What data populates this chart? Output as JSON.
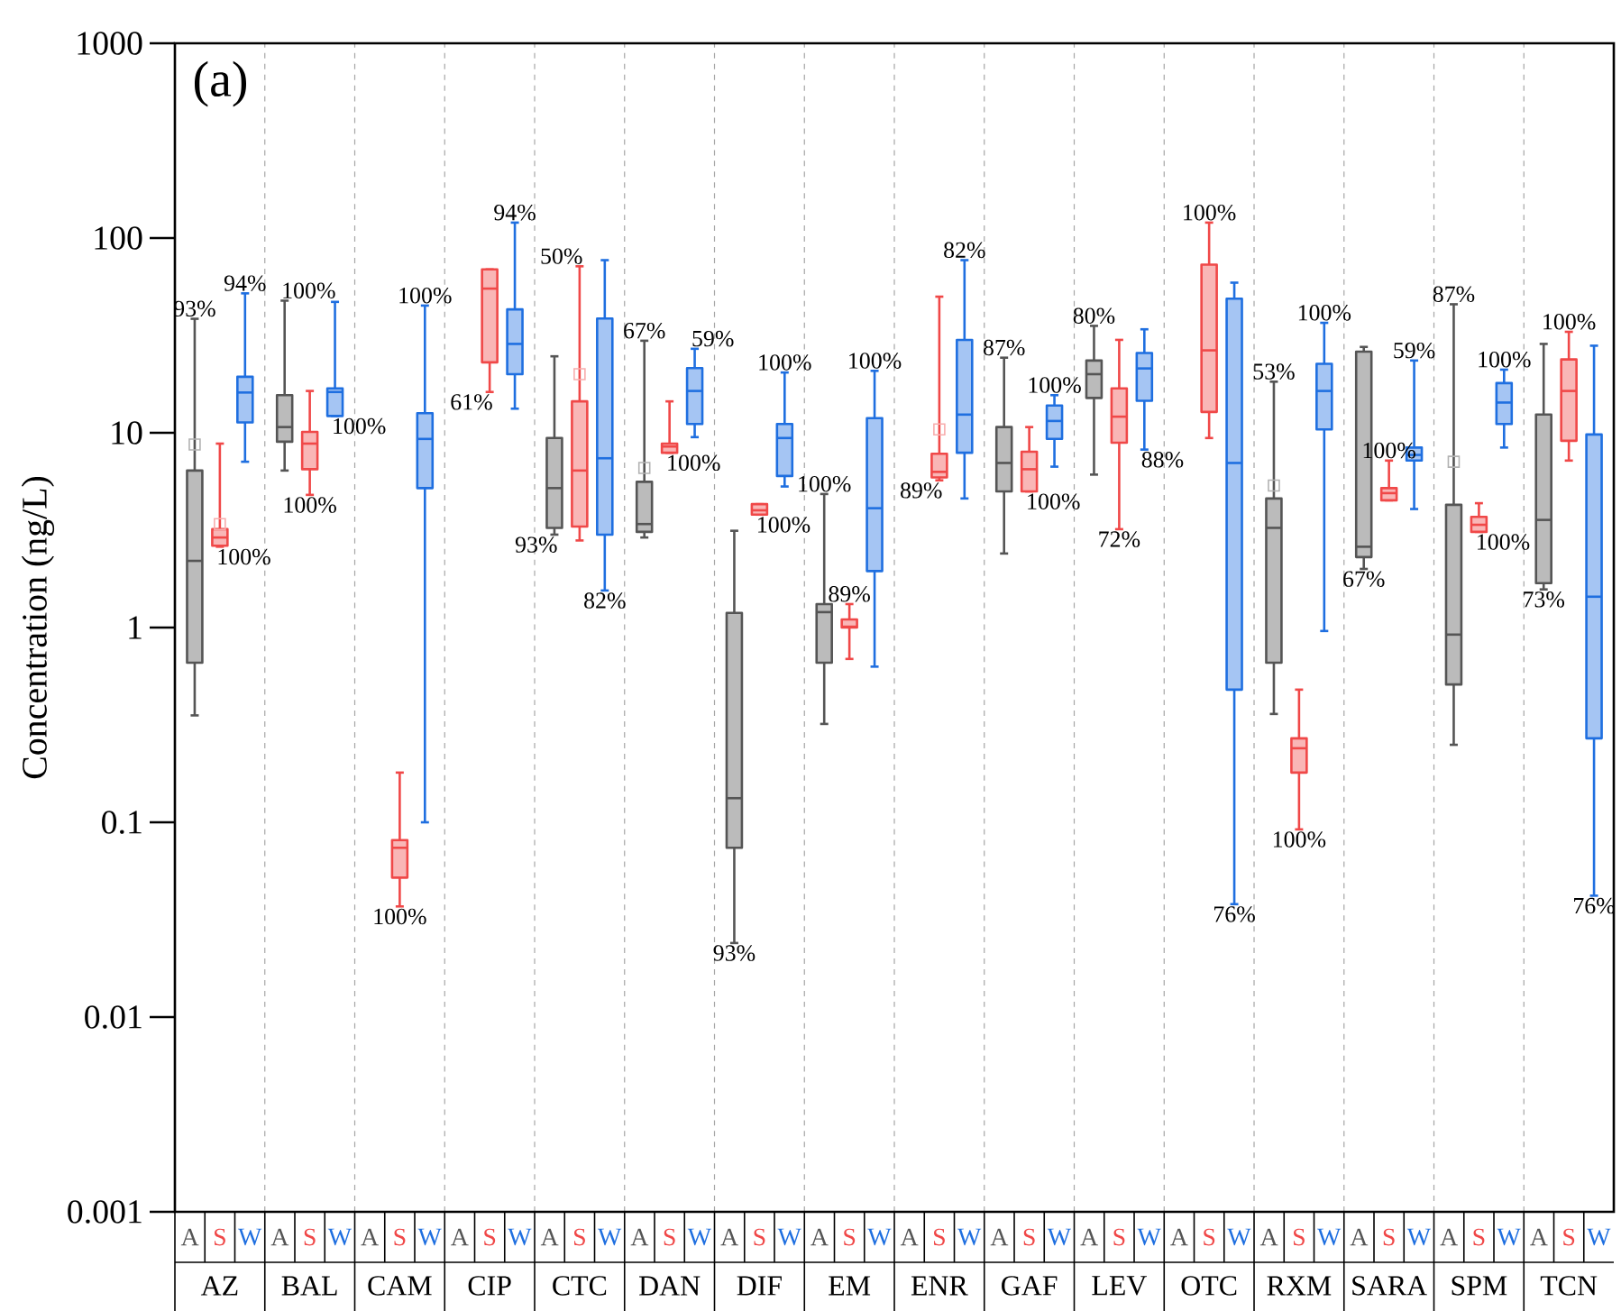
{
  "chart_data": {
    "type": "box",
    "ylabel": "Concentration (ng/L)",
    "log": true,
    "ylim": [
      0.001,
      1000
    ],
    "yticks": [
      0.001,
      0.01,
      0.1,
      1,
      10,
      100,
      1000
    ],
    "grid": "x",
    "categories": [
      "AZ",
      "BAL",
      "CAM",
      "CIP",
      "CTC",
      "DAN",
      "DIF",
      "EM",
      "ENR",
      "GAF",
      "LEV",
      "OTC",
      "RXM",
      "SARA",
      "SPM",
      "TCN"
    ],
    "series": [
      {
        "name": "A",
        "color": "#555555",
        "boxes": [
          {
            "low": 0.354,
            "q1": 0.66,
            "median": 2.2,
            "q3": 6.4,
            "high": 38.5,
            "mean": 8.7
          },
          {
            "low": 6.4,
            "q1": 9.0,
            "median": 10.7,
            "q3": 15.6,
            "high": 47.7
          },
          null,
          null,
          {
            "low": 3.0,
            "q1": 3.25,
            "median": 5.2,
            "q3": 9.4,
            "high": 24.7
          },
          {
            "low": 2.9,
            "q1": 3.1,
            "median": 3.4,
            "q3": 5.6,
            "high": 29.7,
            "mean": 6.6
          },
          {
            "low": 0.024,
            "q1": 0.074,
            "median": 0.133,
            "q3": 1.19,
            "high": 3.14
          },
          {
            "low": 0.32,
            "q1": 0.66,
            "median": 1.2,
            "q3": 1.32,
            "high": 4.85
          },
          null,
          {
            "low": 2.4,
            "q1": 5.0,
            "median": 7.0,
            "q3": 10.7,
            "high": 24.3
          },
          {
            "low": 6.1,
            "q1": 15.1,
            "median": 20,
            "q3": 23.5,
            "high": 35.4
          },
          null,
          {
            "low": 0.36,
            "q1": 0.66,
            "median": 3.25,
            "q3": 4.6,
            "high": 18.3,
            "mean": 5.36
          },
          {
            "low": 2.0,
            "q1": 2.3,
            "median": 2.6,
            "q3": 26.1,
            "high": 27.6
          },
          {
            "low": 0.25,
            "q1": 0.51,
            "median": 0.92,
            "q3": 4.27,
            "high": 45.7,
            "mean": 7.1
          },
          {
            "low": 1.57,
            "q1": 1.69,
            "median": 3.57,
            "q3": 12.4,
            "high": 28.6
          }
        ],
        "value_labels": [
          "93%",
          "100%",
          null,
          null,
          "93%",
          "67%",
          "93%",
          "100%",
          null,
          "87%",
          "80%",
          null,
          "53%",
          "67%",
          "87%",
          "73%"
        ]
      },
      {
        "name": "S",
        "color": "#f04848",
        "boxes": [
          {
            "low": 2.6,
            "q1": 2.63,
            "median": 2.9,
            "q3": 3.2,
            "high": 8.8,
            "mean": 3.4
          },
          {
            "low": 4.8,
            "q1": 6.5,
            "median": 8.8,
            "q3": 10.1,
            "high": 16.4
          },
          {
            "low": 0.037,
            "q1": 0.052,
            "median": 0.074,
            "q3": 0.081,
            "high": 0.18
          },
          {
            "low": 16.2,
            "q1": 23,
            "median": 55,
            "q3": 69,
            "high": 69
          },
          {
            "low": 2.8,
            "q1": 3.3,
            "median": 6.4,
            "q3": 14.5,
            "high": 71.6,
            "mean": 20
          },
          {
            "low": 7.9,
            "q1": 7.9,
            "median": 8.5,
            "q3": 8.8,
            "high": 14.5
          },
          {
            "low": 3.8,
            "q1": 3.8,
            "median": 4.0,
            "q3": 4.3,
            "high": 4.3
          },
          {
            "low": 0.69,
            "q1": 1.0,
            "median": 1.01,
            "q3": 1.1,
            "high": 1.32
          },
          {
            "low": 5.7,
            "q1": 5.9,
            "median": 6.3,
            "q3": 7.8,
            "high": 50,
            "mean": 10.4
          },
          {
            "low": 5.0,
            "q1": 5.0,
            "median": 6.5,
            "q3": 8.0,
            "high": 10.7
          },
          {
            "low": 3.2,
            "q1": 8.9,
            "median": 12.1,
            "q3": 16.9,
            "high": 30
          },
          {
            "low": 9.4,
            "q1": 12.8,
            "median": 26.5,
            "q3": 73,
            "high": 120
          },
          {
            "low": 0.092,
            "q1": 0.18,
            "median": 0.24,
            "q3": 0.27,
            "high": 0.48
          },
          {
            "low": 4.5,
            "q1": 4.5,
            "median": 4.9,
            "q3": 5.2,
            "high": 7.2
          },
          {
            "low": 3.1,
            "q1": 3.1,
            "median": 3.37,
            "q3": 3.7,
            "high": 4.35
          },
          {
            "low": 7.2,
            "q1": 9.1,
            "median": 16.4,
            "q3": 23.8,
            "high": 33
          }
        ],
        "value_labels": [
          "100%",
          "100%",
          "100%",
          "61%",
          "50%",
          "100%",
          "100%",
          "89%",
          "89%",
          "100%",
          "72%",
          "100%",
          "100%",
          "100%",
          "100%",
          "100%"
        ]
      },
      {
        "name": "W",
        "color": "#1f6fe0",
        "boxes": [
          {
            "low": 7.1,
            "q1": 11.3,
            "median": 16.1,
            "q3": 19.4,
            "high": 52
          },
          {
            "low": 12.2,
            "q1": 12.2,
            "median": 16.2,
            "q3": 16.9,
            "high": 47
          },
          {
            "low": 0.1,
            "q1": 5.2,
            "median": 9.3,
            "q3": 12.6,
            "high": 45
          },
          {
            "low": 13.3,
            "q1": 20,
            "median": 28.6,
            "q3": 43,
            "high": 120
          },
          {
            "low": 1.55,
            "q1": 3.0,
            "median": 7.4,
            "q3": 38.6,
            "high": 77
          },
          {
            "low": 9.5,
            "q1": 11.1,
            "median": 16.4,
            "q3": 21.5,
            "high": 27
          },
          {
            "low": 5.3,
            "q1": 6.0,
            "median": 9.4,
            "q3": 11.1,
            "high": 20.4
          },
          {
            "low": 0.63,
            "q1": 1.95,
            "median": 4.1,
            "q3": 11.9,
            "high": 20.8
          },
          {
            "low": 4.6,
            "q1": 7.9,
            "median": 12.4,
            "q3": 30,
            "high": 77
          },
          {
            "low": 6.7,
            "q1": 9.3,
            "median": 11.5,
            "q3": 13.8,
            "high": 15.6
          },
          {
            "low": 8.2,
            "q1": 14.6,
            "median": 21.4,
            "q3": 25.7,
            "high": 34
          },
          {
            "low": 0.038,
            "q1": 0.48,
            "median": 7.0,
            "q3": 48.8,
            "high": 59
          },
          {
            "low": 0.96,
            "q1": 10.4,
            "median": 16.4,
            "q3": 22.6,
            "high": 36.7
          },
          {
            "low": 4.06,
            "q1": 7.2,
            "median": 7.7,
            "q3": 8.4,
            "high": 23.5
          },
          {
            "low": 8.4,
            "q1": 11.1,
            "median": 14.3,
            "q3": 18.0,
            "high": 21.1
          },
          {
            "low": 0.042,
            "q1": 0.27,
            "median": 1.44,
            "q3": 9.8,
            "high": 28
          }
        ],
        "value_labels": [
          "94%",
          "100%",
          "100%",
          "94%",
          "82%",
          "59%",
          "100%",
          "100%",
          "82%",
          "100%",
          "88%",
          "76%",
          "100%",
          "59%",
          "100%",
          "76%"
        ]
      }
    ],
    "annotations": [
      "(a)"
    ]
  }
}
